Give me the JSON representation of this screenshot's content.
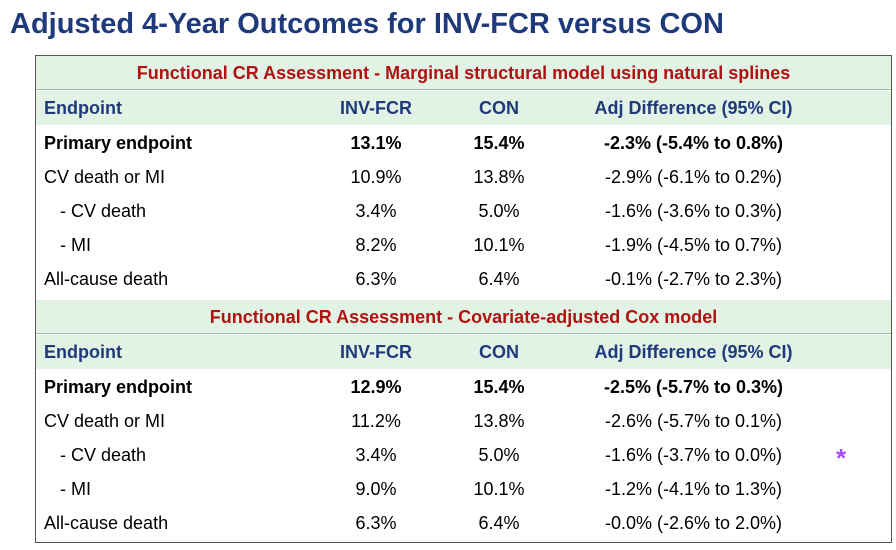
{
  "title": "Adjusted 4-Year Outcomes for INV-FCR versus CON",
  "accent_colors": {
    "title": "#1f3a7a",
    "section_title": "#b01212",
    "header_bg": "#e2f3e6",
    "asterisk": "#a64dff"
  },
  "sections": [
    {
      "title": "Functional CR Assessment - Marginal structural model using natural splines",
      "headers": {
        "endpoint": "Endpoint",
        "inv": "INV-FCR",
        "con": "CON",
        "diff": "Adj Difference (95% CI)"
      },
      "rows": [
        {
          "endpoint": "Primary endpoint",
          "inv": "13.1%",
          "con": "15.4%",
          "diff": "-2.3% (-5.4% to 0.8%)"
        },
        {
          "endpoint": "CV death or MI",
          "inv": "10.9%",
          "con": "13.8%",
          "diff": "-2.9% (-6.1% to 0.2%)"
        },
        {
          "endpoint": "- CV death",
          "inv": "3.4%",
          "con": "5.0%",
          "diff": "-1.6% (-3.6% to 0.3%)"
        },
        {
          "endpoint": "- MI",
          "inv": "8.2%",
          "con": "10.1%",
          "diff": "-1.9% (-4.5% to 0.7%)"
        },
        {
          "endpoint": "All-cause death",
          "inv": "6.3%",
          "con": "6.4%",
          "diff": "-0.1% (-2.7% to 2.3%)"
        }
      ]
    },
    {
      "title": "Functional CR Assessment - Covariate-adjusted Cox model",
      "headers": {
        "endpoint": "Endpoint",
        "inv": "INV-FCR",
        "con": "CON",
        "diff": "Adj Difference (95% CI)"
      },
      "rows": [
        {
          "endpoint": "Primary endpoint",
          "inv": "12.9%",
          "con": "15.4%",
          "diff": "-2.5% (-5.7% to 0.3%)"
        },
        {
          "endpoint": "CV death or MI",
          "inv": "11.2%",
          "con": "13.8%",
          "diff": "-2.6% (-5.7% to 0.1%)"
        },
        {
          "endpoint": "- CV death",
          "inv": "3.4%",
          "con": "5.0%",
          "diff": "-1.6% (-3.7% to 0.0%)",
          "marker": "*"
        },
        {
          "endpoint": "- MI",
          "inv": "9.0%",
          "con": "10.1%",
          "diff": "-1.2% (-4.1% to 1.3%)"
        },
        {
          "endpoint": "All-cause death",
          "inv": "6.3%",
          "con": "6.4%",
          "diff": "-0.0% (-2.6% to 2.0%)"
        }
      ]
    }
  ]
}
